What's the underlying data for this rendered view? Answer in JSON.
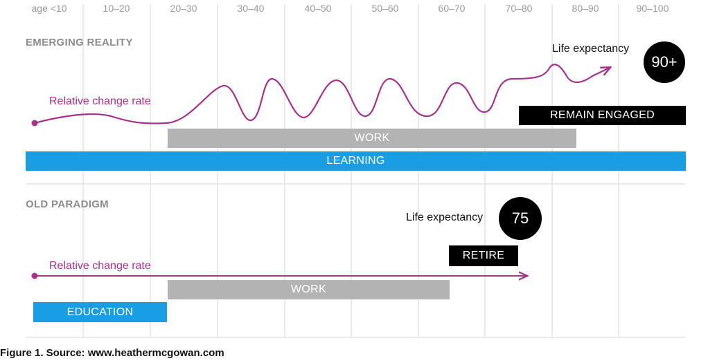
{
  "age_axis": [
    "age <10",
    "10–20",
    "20–30",
    "30–40",
    "40–50",
    "50–60",
    "60–70",
    "70–80",
    "80–90",
    "90–100"
  ],
  "emerging": {
    "title": "EMERGING REALITY",
    "curve_label": "Relative change rate",
    "life_expectancy_label": "Life expectancy",
    "life_expectancy_value": "90+",
    "bars": {
      "remain_engaged": "REMAIN ENGAGED",
      "work": "WORK",
      "learning": "LEARNING"
    }
  },
  "old": {
    "title": "OLD PARADIGM",
    "curve_label": "Relative change rate",
    "life_expectancy_label": "Life expectancy",
    "life_expectancy_value": "75",
    "bars": {
      "retire": "RETIRE",
      "work": "WORK",
      "education": "EDUCATION"
    }
  },
  "caption": "Figure 1. Source: www.heathermcgowan.com",
  "colors": {
    "grid": "#e4e4e4",
    "curve": "#a3338b",
    "work_bar": "#b3b3b3",
    "learning_bar": "#1a9ee3",
    "black_bar": "#000000"
  }
}
